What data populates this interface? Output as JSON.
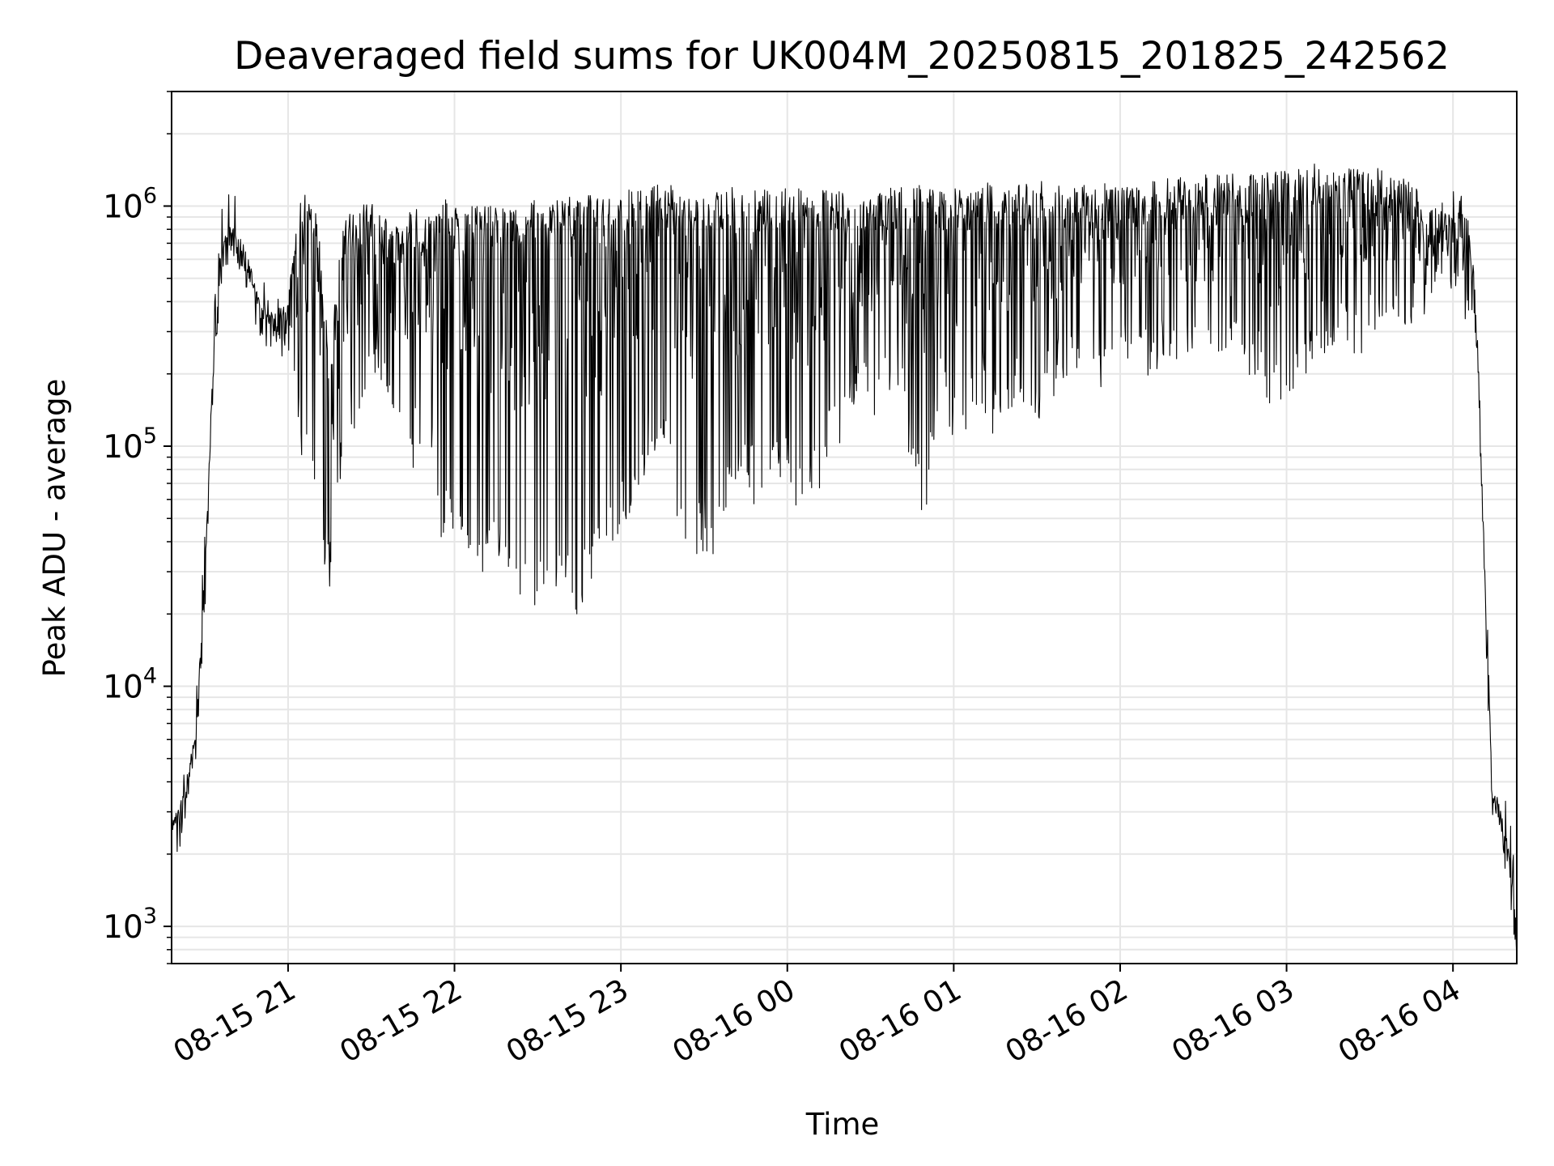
{
  "chart_data": {
    "type": "line",
    "title": "Deaveraged field sums for UK004M_20250815_201825_242562",
    "xlabel": "Time",
    "ylabel": "Peak ADU - average",
    "yscale": "log",
    "ylim": [
      700,
      3000000
    ],
    "xlim": [
      "08-15 20:18",
      "08-16 04:23"
    ],
    "grid": true,
    "line_color": "#000000",
    "grid_color": "#e6e6e6",
    "x_ticks": [
      {
        "value": "08-15 21:00",
        "label": "08-15 21"
      },
      {
        "value": "08-15 22:00",
        "label": "08-15 22"
      },
      {
        "value": "08-15 23:00",
        "label": "08-15 23"
      },
      {
        "value": "08-16 00:00",
        "label": "08-16 00"
      },
      {
        "value": "08-16 01:00",
        "label": "08-16 01"
      },
      {
        "value": "08-16 02:00",
        "label": "08-16 02"
      },
      {
        "value": "08-16 03:00",
        "label": "08-16 03"
      },
      {
        "value": "08-16 04:00",
        "label": "08-16 04"
      }
    ],
    "y_ticks": [
      {
        "value": 1000,
        "base": "10",
        "exp": "3"
      },
      {
        "value": 10000,
        "base": "10",
        "exp": "4"
      },
      {
        "value": 100000,
        "base": "10",
        "exp": "5"
      },
      {
        "value": 1000000,
        "base": "10",
        "exp": "6"
      }
    ],
    "series": [
      {
        "x": [
          "08-15 20:18",
          "08-15 20:21",
          "08-15 20:24",
          "08-15 20:27",
          "08-15 20:30",
          "08-15 20:33",
          "08-15 20:36",
          "08-15 20:40",
          "08-15 20:45",
          "08-15 20:50",
          "08-15 20:55",
          "08-15 21:00",
          "08-15 21:05",
          "08-15 21:10",
          "08-15 21:15",
          "08-15 21:20",
          "08-15 21:25",
          "08-15 21:30",
          "08-15 21:35",
          "08-15 21:40",
          "08-15 21:45",
          "08-15 21:50",
          "08-15 21:55",
          "08-15 22:00",
          "08-15 22:05",
          "08-15 22:10",
          "08-15 22:15",
          "08-15 22:20",
          "08-15 22:25",
          "08-15 22:30",
          "08-15 22:35",
          "08-15 22:40",
          "08-15 22:45",
          "08-15 22:50",
          "08-15 22:55",
          "08-15 23:00",
          "08-15 23:05",
          "08-15 23:10",
          "08-15 23:15",
          "08-15 23:20",
          "08-15 23:25",
          "08-15 23:30",
          "08-15 23:35",
          "08-15 23:40",
          "08-15 23:45",
          "08-15 23:50",
          "08-15 23:55",
          "08-16 00:00",
          "08-16 00:05",
          "08-16 00:10",
          "08-16 00:15",
          "08-16 00:20",
          "08-16 00:25",
          "08-16 00:30",
          "08-16 00:35",
          "08-16 00:40",
          "08-16 00:45",
          "08-16 00:50",
          "08-16 00:55",
          "08-16 01:00",
          "08-16 01:05",
          "08-16 01:10",
          "08-16 01:15",
          "08-16 01:20",
          "08-16 01:25",
          "08-16 01:30",
          "08-16 01:35",
          "08-16 01:40",
          "08-16 01:45",
          "08-16 01:50",
          "08-16 01:55",
          "08-16 02:00",
          "08-16 02:05",
          "08-16 02:10",
          "08-16 02:15",
          "08-16 02:20",
          "08-16 02:25",
          "08-16 02:30",
          "08-16 02:35",
          "08-16 02:40",
          "08-16 02:45",
          "08-16 02:50",
          "08-16 02:55",
          "08-16 03:00",
          "08-16 03:05",
          "08-16 03:10",
          "08-16 03:15",
          "08-16 03:20",
          "08-16 03:25",
          "08-16 03:30",
          "08-16 03:35",
          "08-16 03:40",
          "08-16 03:45",
          "08-16 03:50",
          "08-16 03:55",
          "08-16 04:00",
          "08-16 04:03",
          "08-16 04:06",
          "08-16 04:09",
          "08-16 04:12",
          "08-16 04:14",
          "08-16 04:16",
          "08-16 04:18",
          "08-16 04:20",
          "08-16 04:23"
        ],
        "y_high": [
          2800,
          3200,
          4500,
          7000,
          30000,
          250000,
          700000,
          900000,
          650000,
          420000,
          360000,
          420000,
          1200000,
          1100000,
          250000,
          900000,
          1000000,
          1100000,
          900000,
          800000,
          1000000,
          900000,
          1100000,
          1000000,
          1000000,
          1000000,
          1000000,
          1100000,
          1000000,
          1100000,
          1150000,
          1100000,
          1150000,
          1200000,
          1100000,
          1150000,
          1200000,
          1200000,
          1250000,
          1200000,
          1100000,
          1100000,
          1150000,
          1200000,
          1100000,
          1200000,
          1150000,
          1200000,
          1200000,
          1150000,
          1200000,
          1150000,
          1200000,
          1150000,
          1200000,
          1200000,
          1250000,
          1200000,
          1150000,
          1200000,
          1200000,
          1250000,
          1250000,
          1200000,
          1250000,
          1300000,
          1250000,
          1200000,
          1250000,
          1300000,
          1250000,
          1300000,
          1250000,
          1300000,
          1300000,
          1350000,
          1300000,
          1350000,
          1350000,
          1400000,
          1350000,
          1400000,
          1400000,
          1450000,
          1450000,
          1500000,
          1450000,
          1500000,
          1450000,
          1450000,
          1450000,
          1400000,
          1300000,
          1000000,
          1000000,
          1300000,
          1100000,
          900000,
          300000,
          20000,
          4500,
          3500,
          2800,
          2200,
          1000
        ],
        "y_low": [
          2500,
          2700,
          3800,
          6000,
          25000,
          200000,
          550000,
          700000,
          500000,
          300000,
          250000,
          200000,
          80000,
          50000,
          25000,
          100000,
          120000,
          200000,
          150000,
          120000,
          80000,
          100000,
          40000,
          40000,
          30000,
          25000,
          30000,
          20000,
          25000,
          20000,
          22000,
          20000,
          20000,
          25000,
          30000,
          40000,
          60000,
          80000,
          100000,
          50000,
          30000,
          35000,
          30000,
          60000,
          70000,
          50000,
          80000,
          60000,
          50000,
          60000,
          80000,
          100000,
          150000,
          120000,
          150000,
          180000,
          60000,
          50000,
          150000,
          100000,
          120000,
          150000,
          100000,
          130000,
          150000,
          120000,
          150000,
          180000,
          200000,
          150000,
          160000,
          180000,
          200000,
          180000,
          200000,
          220000,
          180000,
          200000,
          200000,
          250000,
          180000,
          200000,
          120000,
          150000,
          180000,
          220000,
          250000,
          250000,
          230000,
          250000,
          250000,
          280000,
          300000,
          350000,
          350000,
          400000,
          350000,
          300000,
          150000,
          15000,
          2500,
          2500,
          2000,
          1800,
          900
        ]
      }
    ]
  }
}
